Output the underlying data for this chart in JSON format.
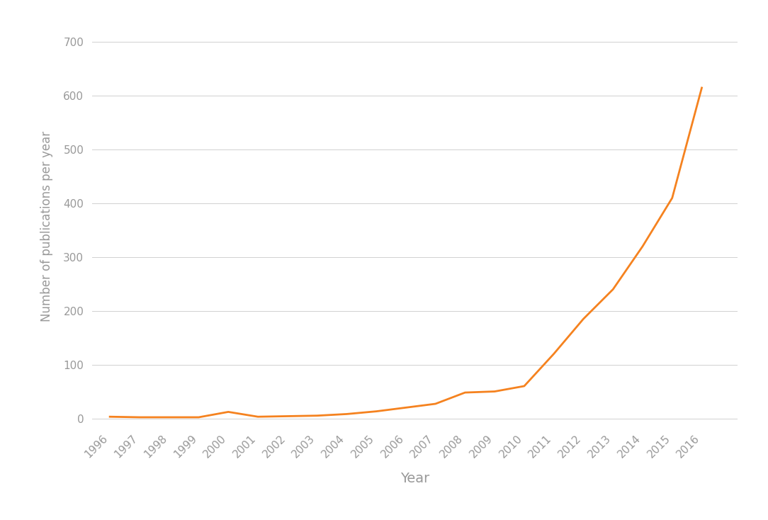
{
  "years": [
    1996,
    1997,
    1998,
    1999,
    2000,
    2001,
    2002,
    2003,
    2004,
    2005,
    2006,
    2007,
    2008,
    2009,
    2010,
    2011,
    2012,
    2013,
    2014,
    2015,
    2016
  ],
  "values": [
    3,
    2,
    2,
    2,
    12,
    3,
    4,
    5,
    8,
    13,
    20,
    27,
    48,
    50,
    60,
    120,
    185,
    240,
    320,
    410,
    615
  ],
  "line_color": "#F5821F",
  "line_width": 2.0,
  "xlabel": "Year",
  "ylabel": "Number of publications per year",
  "xlabel_fontsize": 14,
  "ylabel_fontsize": 12,
  "tick_label_color": "#999999",
  "tick_fontsize": 11,
  "yticks": [
    0,
    100,
    200,
    300,
    400,
    500,
    600,
    700
  ],
  "ylim": [
    -15,
    730
  ],
  "xlim": [
    1995.4,
    2017.2
  ],
  "background_color": "#ffffff",
  "grid_color": "#d0d0d0",
  "grid_linewidth": 0.7
}
